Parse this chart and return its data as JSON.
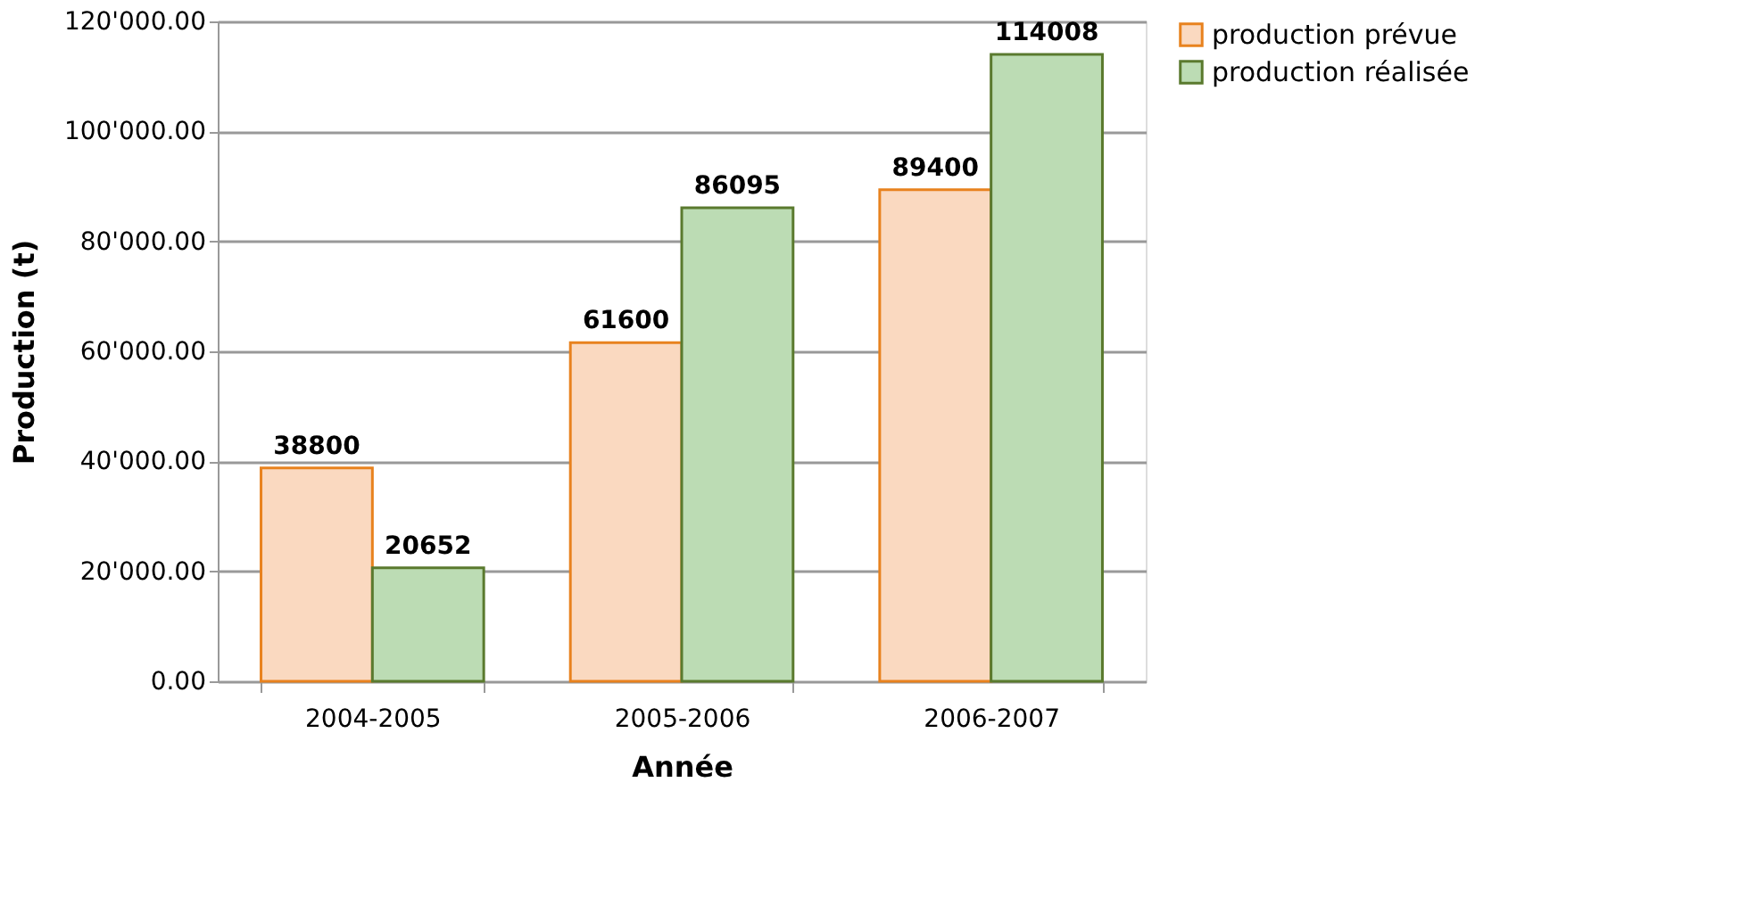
{
  "chart_data": {
    "type": "bar",
    "xlabel": "Année",
    "ylabel": "Production (t)",
    "categories": [
      "2004-2005",
      "2005-2006",
      "2006-2007"
    ],
    "series": [
      {
        "name": "production prévue",
        "color": "#fad9c0",
        "values": [
          38800,
          61600,
          89400
        ]
      },
      {
        "name": "production réalisée",
        "color": "#bcdcb4",
        "values": [
          20652,
          86095,
          114008
        ]
      }
    ],
    "ylim": [
      0,
      120000
    ],
    "yticks": [
      {
        "value": 0,
        "label": "0.00"
      },
      {
        "value": 20000,
        "label": "20'000.00"
      },
      {
        "value": 40000,
        "label": "40'000.00"
      },
      {
        "value": 60000,
        "label": "60'000.00"
      },
      {
        "value": 80000,
        "label": "80'000.00"
      },
      {
        "value": 100000,
        "label": "100'000.00"
      },
      {
        "value": 120000,
        "label": "120'000.00"
      }
    ],
    "grid": "y",
    "legend": "right",
    "data_labels": true
  }
}
